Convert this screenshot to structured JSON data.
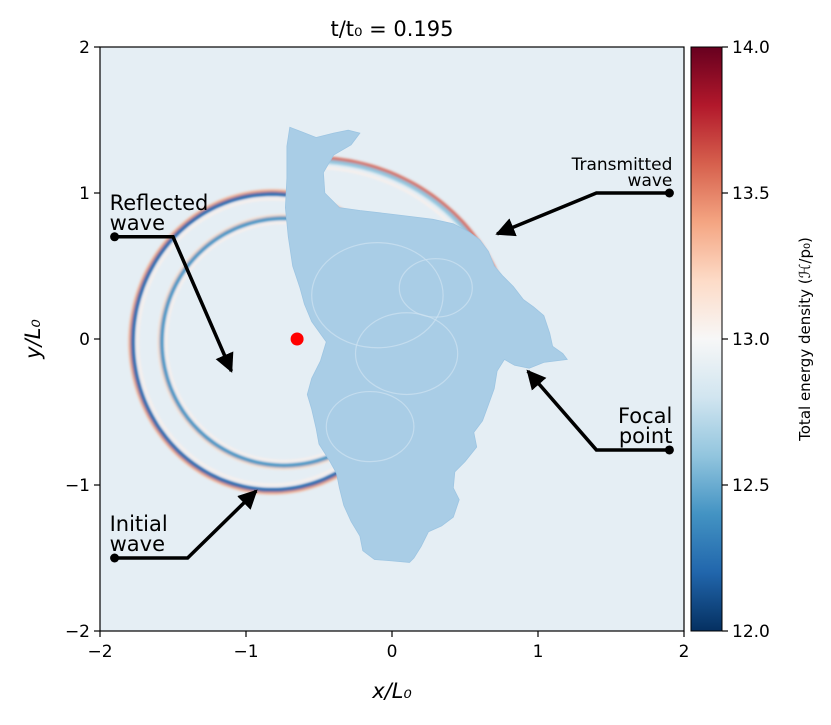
{
  "chart_data": {
    "type": "heatmap",
    "title": "t/t₀ = 0.195",
    "xlabel": "x/L₀",
    "ylabel": "y/L₀",
    "xlim": [
      -2,
      2
    ],
    "ylim": [
      -2,
      2
    ],
    "x_ticks": [
      -2,
      -1,
      0,
      1,
      2
    ],
    "y_ticks": [
      -2,
      -1,
      0,
      1,
      2
    ],
    "x_tick_labels": [
      "−2",
      "−1",
      "0",
      "1",
      "2"
    ],
    "y_tick_labels": [
      "−2",
      "−1",
      "0",
      "1",
      "2"
    ],
    "grid": false,
    "colorbar": {
      "label": "Total energy density (ℋ/p₀)",
      "range": [
        12.0,
        14.0
      ],
      "ticks": [
        12.0,
        12.5,
        13.0,
        13.5,
        14.0
      ],
      "tick_labels": [
        "12.0",
        "12.5",
        "13.0",
        "13.5",
        "14.0"
      ],
      "colormap": [
        "#053061",
        "#2166ac",
        "#4393c3",
        "#92c5de",
        "#d1e5f0",
        "#f7f7f7",
        "#fddbc7",
        "#f4a582",
        "#d6604d",
        "#b2182b",
        "#67001f"
      ]
    },
    "background_value": 12.97,
    "marker": {
      "x": -0.65,
      "y": 0.0,
      "color": "#ff0000"
    },
    "annotations": [
      {
        "lines": [
          "Reflected",
          "wave"
        ],
        "anchor": [
          -1.9,
          0.7
        ],
        "target": [
          -1.1,
          -0.22
        ],
        "bend": [
          -1.5,
          0.7
        ]
      },
      {
        "lines": [
          "Transmitted",
          "wave"
        ],
        "anchor": [
          1.9,
          1.0
        ],
        "target": [
          0.72,
          0.72
        ],
        "bend": [
          1.4,
          1.0
        ]
      },
      {
        "lines": [
          "Focal",
          "point"
        ],
        "anchor": [
          1.9,
          -0.76
        ],
        "target": [
          0.93,
          -0.22
        ],
        "bend": [
          1.4,
          -0.76
        ]
      },
      {
        "lines": [
          "Initial",
          "wave"
        ],
        "anchor": [
          -1.9,
          -1.5
        ],
        "target": [
          -0.93,
          -1.04
        ],
        "bend": [
          -1.4,
          -1.5
        ]
      }
    ],
    "medium_outline": [
      [
        -0.7,
        1.45
      ],
      [
        -0.62,
        1.42
      ],
      [
        -0.52,
        1.38
      ],
      [
        -0.4,
        1.41
      ],
      [
        -0.3,
        1.43
      ],
      [
        -0.22,
        1.41
      ],
      [
        -0.28,
        1.33
      ],
      [
        -0.4,
        1.26
      ],
      [
        -0.47,
        1.14
      ],
      [
        -0.46,
        1.0
      ],
      [
        -0.36,
        0.9
      ],
      [
        -0.22,
        0.88
      ],
      [
        -0.05,
        0.86
      ],
      [
        0.12,
        0.84
      ],
      [
        0.28,
        0.82
      ],
      [
        0.42,
        0.79
      ],
      [
        0.53,
        0.73
      ],
      [
        0.6,
        0.68
      ],
      [
        0.66,
        0.6
      ],
      [
        0.7,
        0.5
      ],
      [
        0.76,
        0.43
      ],
      [
        0.83,
        0.36
      ],
      [
        0.9,
        0.27
      ],
      [
        0.97,
        0.22
      ],
      [
        1.04,
        0.16
      ],
      [
        1.08,
        0.04
      ],
      [
        1.1,
        -0.05
      ],
      [
        1.17,
        -0.1
      ],
      [
        1.2,
        -0.14
      ],
      [
        1.04,
        -0.16
      ],
      [
        0.94,
        -0.2
      ],
      [
        0.84,
        -0.18
      ],
      [
        0.77,
        -0.14
      ],
      [
        0.72,
        -0.22
      ],
      [
        0.7,
        -0.34
      ],
      [
        0.66,
        -0.45
      ],
      [
        0.62,
        -0.56
      ],
      [
        0.56,
        -0.64
      ],
      [
        0.58,
        -0.74
      ],
      [
        0.5,
        -0.84
      ],
      [
        0.43,
        -0.91
      ],
      [
        0.42,
        -1.02
      ],
      [
        0.46,
        -1.1
      ],
      [
        0.42,
        -1.22
      ],
      [
        0.34,
        -1.28
      ],
      [
        0.25,
        -1.32
      ],
      [
        0.2,
        -1.42
      ],
      [
        0.15,
        -1.5
      ],
      [
        0.12,
        -1.53
      ],
      [
        0.0,
        -1.52
      ],
      [
        -0.12,
        -1.51
      ],
      [
        -0.2,
        -1.45
      ],
      [
        -0.22,
        -1.35
      ],
      [
        -0.28,
        -1.25
      ],
      [
        -0.33,
        -1.14
      ],
      [
        -0.36,
        -1.02
      ],
      [
        -0.38,
        -0.92
      ],
      [
        -0.43,
        -0.83
      ],
      [
        -0.5,
        -0.72
      ],
      [
        -0.52,
        -0.61
      ],
      [
        -0.55,
        -0.48
      ],
      [
        -0.58,
        -0.38
      ],
      [
        -0.55,
        -0.27
      ],
      [
        -0.49,
        -0.15
      ],
      [
        -0.45,
        -0.02
      ],
      [
        -0.55,
        0.12
      ],
      [
        -0.6,
        0.24
      ],
      [
        -0.63,
        0.35
      ],
      [
        -0.68,
        0.5
      ],
      [
        -0.71,
        0.7
      ],
      [
        -0.73,
        0.9
      ],
      [
        -0.72,
        1.1
      ],
      [
        -0.72,
        1.32
      ]
    ],
    "wavefronts": [
      {
        "name": "initial",
        "cx": -0.82,
        "cy": -0.02,
        "rx": 0.97,
        "ry": 1.03,
        "outer": "#f4a582",
        "inner": "#2166ac",
        "a0": 50,
        "a1": 345
      },
      {
        "name": "reflected",
        "cx": -0.74,
        "cy": -0.02,
        "rx": 0.85,
        "ry": 0.86,
        "outer": "#fddbc7",
        "inner": "#4393c3",
        "a0": 70,
        "a1": 320
      },
      {
        "name": "transmitted",
        "cx": -0.55,
        "cy": -0.05,
        "rx": 1.37,
        "ry": 1.29,
        "outer": "#d6604d",
        "inner": "#92c5de",
        "a0": 15,
        "a1": 95
      }
    ]
  }
}
